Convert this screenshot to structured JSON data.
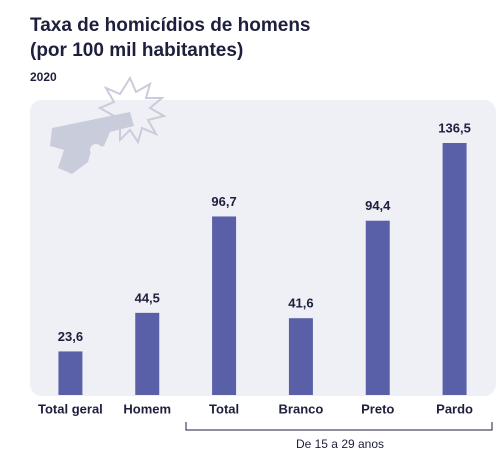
{
  "chart_data": {
    "type": "bar",
    "title": [
      "Taxa de homicídios de homens",
      "(por 100 mil habitantes)"
    ],
    "subtitle": "2020",
    "categories": [
      "Total geral",
      "Homem",
      "Total",
      "Branco",
      "Preto",
      "Pardo"
    ],
    "values": [
      23.6,
      44.5,
      96.7,
      41.6,
      94.4,
      136.5
    ],
    "value_labels": [
      "23,6",
      "44,5",
      "96,7",
      "41,6",
      "94,4",
      "136,5"
    ],
    "color": "#5a60a8",
    "annotation": "De 15 a 29 anos"
  }
}
